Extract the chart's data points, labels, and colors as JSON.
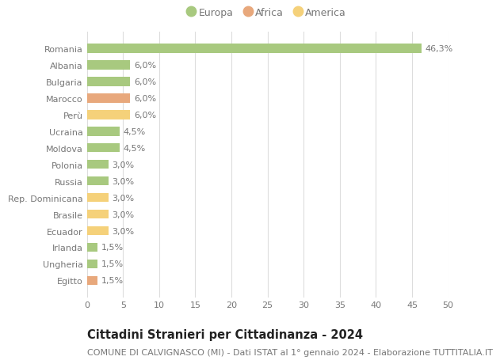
{
  "categories": [
    "Romania",
    "Albania",
    "Bulgaria",
    "Marocco",
    "Perù",
    "Ucraina",
    "Moldova",
    "Polonia",
    "Russia",
    "Rep. Dominicana",
    "Brasile",
    "Ecuador",
    "Irlanda",
    "Ungheria",
    "Egitto"
  ],
  "values": [
    46.3,
    6.0,
    6.0,
    6.0,
    6.0,
    4.5,
    4.5,
    3.0,
    3.0,
    3.0,
    3.0,
    3.0,
    1.5,
    1.5,
    1.5
  ],
  "continents": [
    "Europa",
    "Europa",
    "Europa",
    "Africa",
    "America",
    "Europa",
    "Europa",
    "Europa",
    "Europa",
    "America",
    "America",
    "America",
    "Europa",
    "Europa",
    "Africa"
  ],
  "continent_colors": {
    "Europa": "#a8c97f",
    "Africa": "#e8a87c",
    "America": "#f5d17a"
  },
  "legend_items": [
    "Europa",
    "Africa",
    "America"
  ],
  "title": "Cittadini Stranieri per Cittadinanza - 2024",
  "subtitle": "COMUNE DI CALVIGNASCO (MI) - Dati ISTAT al 1° gennaio 2024 - Elaborazione TUTTITALIA.IT",
  "xlim": [
    0,
    50
  ],
  "xticks": [
    0,
    5,
    10,
    15,
    20,
    25,
    30,
    35,
    40,
    45,
    50
  ],
  "background_color": "#ffffff",
  "grid_color": "#dddddd",
  "bar_height": 0.55,
  "title_fontsize": 10.5,
  "subtitle_fontsize": 8,
  "label_fontsize": 8,
  "tick_fontsize": 8,
  "legend_fontsize": 9,
  "text_color": "#777777",
  "title_color": "#222222"
}
